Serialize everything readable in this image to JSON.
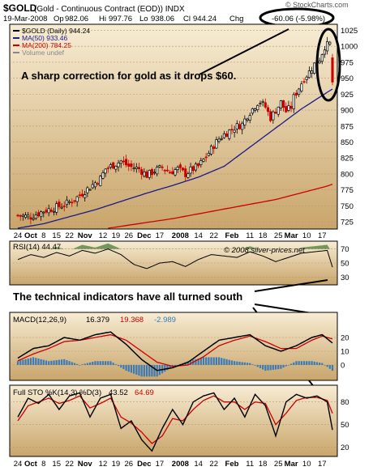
{
  "header": {
    "symbol": "$GOLD",
    "title": "(Gold - Continuous Contract (EOD)) INDX",
    "date": "19-Mar-2008",
    "op_label": "Op",
    "op": "982.06",
    "hi_label": "Hi",
    "hi": "997.76",
    "lo_label": "Lo",
    "lo": "938.06",
    "cl_label": "Cl",
    "cl": "944.24",
    "chg_label": "Chg",
    "chg": "-60.06 (-5.98%)",
    "watermark": "© StockCharts.com"
  },
  "colors": {
    "panel_bg_top": "#f7ecd3",
    "panel_bg_bottom": "#c9a56b",
    "up_candle": "#000000",
    "down_candle": "#cc0000",
    "ma50": "#1a1a8c",
    "ma200": "#cc0000",
    "rsi_fill": "#5a8a4a",
    "macd_line": "#000000",
    "macd_signal": "#cc0000",
    "macd_hist": "#3a7ab8",
    "annotation": "#000000"
  },
  "x_ticks": [
    "24",
    "Oct",
    "8",
    "15",
    "22",
    "Nov",
    "12",
    "19",
    "26",
    "Dec",
    "17",
    "2008",
    "14",
    "22",
    "Feb",
    "11",
    "18",
    "25",
    "Mar",
    "10",
    "17"
  ],
  "chart_data": [
    {
      "type": "candlestick",
      "panel": "price",
      "legend": [
        {
          "label": "$GOLD (Daily)",
          "value": "944.24",
          "color": "#000000"
        },
        {
          "label": "MA(50)",
          "value": "933.46",
          "color": "#1a1a8c"
        },
        {
          "label": "MA(200)",
          "value": "784.25",
          "color": "#cc0000"
        },
        {
          "label": "Volume undef",
          "value": "",
          "color": "#888888"
        }
      ],
      "y_ticks": [
        725,
        750,
        775,
        800,
        825,
        850,
        875,
        900,
        925,
        950,
        975,
        1000,
        1025
      ],
      "ylim": [
        715,
        1032
      ],
      "annotation": "A sharp correction for gold as it drops $60.",
      "x_index_range": [
        0,
        122
      ],
      "close_keypoints": [
        [
          0,
          735
        ],
        [
          5,
          733
        ],
        [
          10,
          742
        ],
        [
          15,
          748
        ],
        [
          18,
          752
        ],
        [
          22,
          760
        ],
        [
          25,
          770
        ],
        [
          29,
          783
        ],
        [
          32,
          793
        ],
        [
          34,
          808
        ],
        [
          36,
          812
        ],
        [
          40,
          820
        ],
        [
          43,
          812
        ],
        [
          47,
          808
        ],
        [
          50,
          798
        ],
        [
          53,
          805
        ],
        [
          56,
          810
        ],
        [
          59,
          803
        ],
        [
          62,
          808
        ],
        [
          65,
          800
        ],
        [
          67,
          806
        ],
        [
          70,
          812
        ],
        [
          72,
          822
        ],
        [
          74,
          833
        ],
        [
          76,
          845
        ],
        [
          78,
          855
        ],
        [
          80,
          862
        ],
        [
          83,
          870
        ],
        [
          85,
          875
        ],
        [
          87,
          878
        ],
        [
          89,
          892
        ],
        [
          91,
          902
        ],
        [
          93,
          912
        ],
        [
          94,
          913
        ],
        [
          96,
          905
        ],
        [
          98,
          888
        ],
        [
          100,
          900
        ],
        [
          102,
          912
        ],
        [
          104,
          898
        ],
        [
          106,
          905
        ],
        [
          107,
          920
        ],
        [
          109,
          935
        ],
        [
          111,
          950
        ],
        [
          113,
          960
        ],
        [
          115,
          972
        ],
        [
          117,
          980
        ],
        [
          119,
          1000
        ],
        [
          120,
          1002
        ],
        [
          121,
          1004
        ],
        [
          122,
          944
        ]
      ],
      "ma50_keypoints": [
        [
          0,
          715
        ],
        [
          10,
          722
        ],
        [
          20,
          733
        ],
        [
          30,
          744
        ],
        [
          40,
          757
        ],
        [
          50,
          770
        ],
        [
          60,
          782
        ],
        [
          70,
          795
        ],
        [
          80,
          812
        ],
        [
          90,
          842
        ],
        [
          100,
          872
        ],
        [
          110,
          902
        ],
        [
          120,
          928
        ],
        [
          122,
          933
        ]
      ],
      "ma200_keypoints": [
        [
          35,
          715
        ],
        [
          60,
          730
        ],
        [
          80,
          745
        ],
        [
          100,
          760
        ],
        [
          120,
          781
        ],
        [
          122,
          784
        ]
      ]
    },
    {
      "type": "area",
      "panel": "rsi",
      "title": "RSI(14) 44.47",
      "watermark": "© 2008 silver-prices.net",
      "y_ticks": [
        30,
        50,
        70
      ],
      "ylim": [
        20,
        80
      ],
      "annotation": "The technical indicators have all turned south",
      "keypoints": [
        [
          0,
          55
        ],
        [
          5,
          62
        ],
        [
          10,
          58
        ],
        [
          15,
          65
        ],
        [
          20,
          60
        ],
        [
          25,
          68
        ],
        [
          30,
          64
        ],
        [
          35,
          70
        ],
        [
          40,
          62
        ],
        [
          45,
          48
        ],
        [
          50,
          42
        ],
        [
          55,
          50
        ],
        [
          60,
          52
        ],
        [
          65,
          45
        ],
        [
          70,
          55
        ],
        [
          75,
          62
        ],
        [
          80,
          60
        ],
        [
          85,
          58
        ],
        [
          90,
          66
        ],
        [
          95,
          60
        ],
        [
          100,
          52
        ],
        [
          105,
          58
        ],
        [
          110,
          64
        ],
        [
          115,
          66
        ],
        [
          120,
          68
        ],
        [
          122,
          44
        ]
      ]
    },
    {
      "type": "line",
      "panel": "macd",
      "title": "MACD(12,26,9)",
      "values_label": [
        "16.379",
        "19.368",
        "-2.989"
      ],
      "y_ticks": [
        0,
        10,
        20
      ],
      "ylim": [
        -10,
        30
      ],
      "macd_keypoints": [
        [
          0,
          5
        ],
        [
          6,
          12
        ],
        [
          12,
          14
        ],
        [
          18,
          20
        ],
        [
          24,
          18
        ],
        [
          30,
          22
        ],
        [
          36,
          24
        ],
        [
          42,
          15
        ],
        [
          48,
          4
        ],
        [
          54,
          -4
        ],
        [
          60,
          -2
        ],
        [
          66,
          2
        ],
        [
          72,
          10
        ],
        [
          78,
          18
        ],
        [
          84,
          20
        ],
        [
          90,
          22
        ],
        [
          96,
          14
        ],
        [
          102,
          10
        ],
        [
          108,
          14
        ],
        [
          114,
          20
        ],
        [
          118,
          22
        ],
        [
          122,
          16
        ]
      ],
      "signal_keypoints": [
        [
          0,
          3
        ],
        [
          6,
          8
        ],
        [
          12,
          12
        ],
        [
          18,
          17
        ],
        [
          24,
          18
        ],
        [
          30,
          20
        ],
        [
          36,
          22
        ],
        [
          42,
          18
        ],
        [
          48,
          10
        ],
        [
          54,
          2
        ],
        [
          60,
          -1
        ],
        [
          66,
          0
        ],
        [
          72,
          6
        ],
        [
          78,
          14
        ],
        [
          84,
          18
        ],
        [
          90,
          21
        ],
        [
          96,
          17
        ],
        [
          102,
          12
        ],
        [
          108,
          12
        ],
        [
          114,
          18
        ],
        [
          118,
          21
        ],
        [
          122,
          19
        ]
      ]
    },
    {
      "type": "line",
      "panel": "sto",
      "title": "Full STO %K(14,3) %D(3)",
      "values_label": [
        "43.52",
        "64.69"
      ],
      "y_ticks": [
        20,
        50,
        80
      ],
      "ylim": [
        10,
        100
      ],
      "k_keypoints": [
        [
          0,
          60
        ],
        [
          4,
          85
        ],
        [
          8,
          78
        ],
        [
          12,
          90
        ],
        [
          16,
          70
        ],
        [
          20,
          88
        ],
        [
          24,
          92
        ],
        [
          28,
          60
        ],
        [
          32,
          85
        ],
        [
          36,
          90
        ],
        [
          40,
          45
        ],
        [
          44,
          55
        ],
        [
          48,
          30
        ],
        [
          52,
          15
        ],
        [
          56,
          45
        ],
        [
          60,
          70
        ],
        [
          64,
          50
        ],
        [
          68,
          80
        ],
        [
          72,
          88
        ],
        [
          76,
          92
        ],
        [
          80,
          70
        ],
        [
          84,
          85
        ],
        [
          88,
          60
        ],
        [
          92,
          90
        ],
        [
          96,
          75
        ],
        [
          100,
          35
        ],
        [
          104,
          80
        ],
        [
          108,
          90
        ],
        [
          112,
          85
        ],
        [
          116,
          88
        ],
        [
          120,
          80
        ],
        [
          122,
          43
        ]
      ],
      "d_keypoints": [
        [
          0,
          55
        ],
        [
          4,
          75
        ],
        [
          8,
          80
        ],
        [
          12,
          85
        ],
        [
          16,
          78
        ],
        [
          20,
          82
        ],
        [
          24,
          88
        ],
        [
          28,
          72
        ],
        [
          32,
          78
        ],
        [
          36,
          85
        ],
        [
          40,
          60
        ],
        [
          44,
          52
        ],
        [
          48,
          40
        ],
        [
          52,
          25
        ],
        [
          56,
          35
        ],
        [
          60,
          58
        ],
        [
          64,
          55
        ],
        [
          68,
          70
        ],
        [
          72,
          82
        ],
        [
          76,
          88
        ],
        [
          80,
          80
        ],
        [
          84,
          80
        ],
        [
          88,
          70
        ],
        [
          92,
          80
        ],
        [
          96,
          78
        ],
        [
          100,
          50
        ],
        [
          104,
          65
        ],
        [
          108,
          82
        ],
        [
          112,
          86
        ],
        [
          116,
          86
        ],
        [
          120,
          82
        ],
        [
          122,
          65
        ]
      ]
    }
  ]
}
